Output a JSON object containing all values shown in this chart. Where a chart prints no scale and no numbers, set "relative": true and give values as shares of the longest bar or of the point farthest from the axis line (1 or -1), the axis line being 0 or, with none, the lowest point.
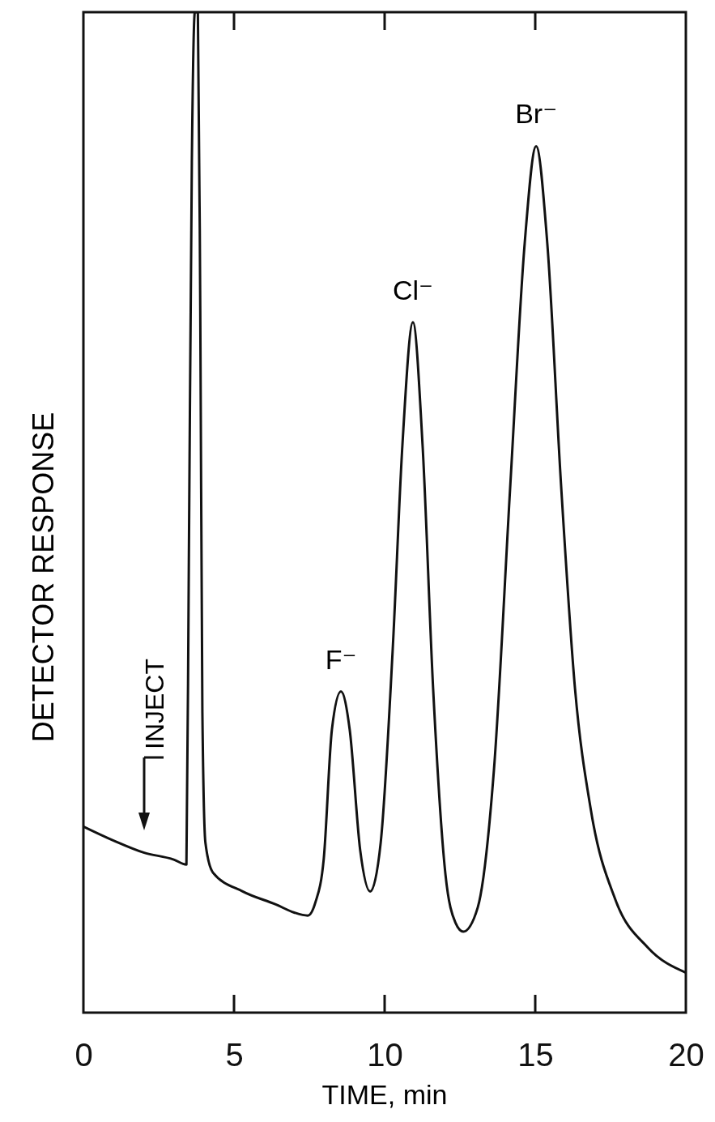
{
  "chart_data": {
    "type": "line",
    "relative": true,
    "xlabel": "TIME, min",
    "ylabel": "DETECTOR RESPONSE",
    "xlim": [
      0,
      20
    ],
    "xticks": [
      0,
      5,
      10,
      15,
      20
    ],
    "grid": false,
    "marker": "none",
    "line_style": "solid",
    "series": [
      {
        "color": "#111111",
        "x": [
          0,
          1,
          2,
          3,
          3.42,
          3.5,
          3.6,
          3.7,
          3.8,
          3.88,
          3.95,
          4.05,
          4.3,
          5.3,
          6.4,
          7.0,
          7.45,
          7.7,
          7.98,
          8.25,
          8.55,
          8.84,
          9.19,
          9.52,
          9.87,
          10.27,
          10.59,
          10.94,
          11.26,
          11.61,
          12.02,
          12.35,
          12.61,
          13.09,
          13.63,
          14.17,
          14.65,
          15.03,
          15.4,
          15.86,
          16.32,
          16.85,
          17.66,
          18.74,
          20
        ],
        "values": [
          0.186,
          0.172,
          0.16,
          0.153,
          0.148,
          0.45,
          0.85,
          1.0,
          1.0,
          0.7,
          0.3,
          0.17,
          0.14,
          0.121,
          0.108,
          0.1,
          0.097,
          0.11,
          0.154,
          0.283,
          0.321,
          0.283,
          0.162,
          0.121,
          0.17,
          0.364,
          0.567,
          0.69,
          0.567,
          0.324,
          0.138,
          0.09,
          0.081,
          0.105,
          0.243,
          0.526,
          0.769,
          0.866,
          0.769,
          0.526,
          0.324,
          0.202,
          0.113,
          0.065,
          0.04
        ]
      }
    ],
    "annotations": [
      {
        "text": "F⁻",
        "x": 8.55,
        "y": 0.321
      },
      {
        "text": "Cl⁻",
        "x": 10.94,
        "y": 0.69
      },
      {
        "text": "Br⁻",
        "x": 15.03,
        "y": 0.866
      },
      "INJECT"
    ]
  }
}
